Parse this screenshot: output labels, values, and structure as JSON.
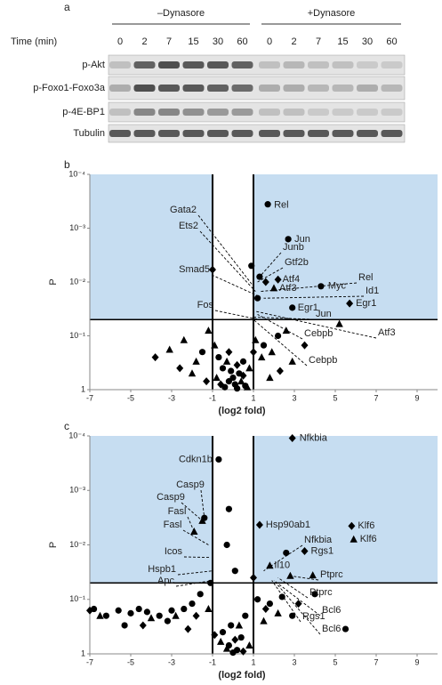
{
  "panel_a": {
    "label": "a",
    "groups": [
      "–Dynasore",
      "+Dynasore"
    ],
    "time_label": "Time (min)",
    "times": [
      [
        0,
        2,
        7,
        15,
        30,
        60
      ],
      [
        0,
        2,
        7,
        15,
        30,
        60
      ]
    ],
    "rows": [
      "p-Akt",
      "p-Foxo1-Foxo3a",
      "p-4E-BP1",
      "Tubulin"
    ]
  },
  "chart_data": [
    {
      "type": "scatter",
      "label": "b",
      "ylabel": "P",
      "xlabel": "(log2 fold)",
      "xlim": [
        -7,
        10
      ],
      "xticks": [
        -7,
        -5,
        -3,
        -1,
        1,
        3,
        5,
        7,
        9
      ],
      "ylim": [
        1,
        0.0001
      ],
      "yscale": "log",
      "yticks": [
        {
          "value": 0.0001,
          "label": "10⁻⁴"
        },
        {
          "value": 0.001,
          "label": "10⁻³"
        },
        {
          "value": 0.01,
          "label": "10⁻²"
        },
        {
          "value": 0.1,
          "label": "10⁻¹"
        },
        1
      ],
      "thresholds": {
        "x": [
          -1,
          1
        ],
        "y": 0.05
      },
      "shade_color": "#c6ddf1",
      "series": [
        {
          "marker": "circle",
          "color": "#000000",
          "x": [
            1.7,
            2.7,
            4.3,
            2.9,
            0.9,
            1.2,
            -0.5,
            -0.2,
            0.1,
            0.3,
            -0.4,
            0.0,
            0.5,
            -0.7,
            0.2,
            -0.1,
            0.6,
            1.5,
            -1.5,
            2.2,
            1.3
          ],
          "y": [
            0.00036,
            0.0016,
            0.012,
            0.03,
            0.005,
            0.02,
            0.4,
            0.7,
            0.8,
            0.5,
            0.9,
            0.6,
            0.3,
            0.25,
            0.95,
            0.45,
            0.85,
            0.15,
            0.2,
            0.1,
            0.008
          ]
        },
        {
          "marker": "triangle",
          "color": "#000000",
          "x": [
            5.2,
            -2.4,
            -1.8,
            -1.2,
            -0.8,
            0.8,
            1.1,
            1.9,
            2.6,
            -3.1,
            0.4,
            -0.3,
            1.4,
            -2.0,
            0.7,
            -0.9,
            2.9,
            1.8,
            2.0
          ],
          "y": [
            0.06,
            0.12,
            0.3,
            0.08,
            0.6,
            0.4,
            0.12,
            0.2,
            0.08,
            0.18,
            0.7,
            0.3,
            0.25,
            0.5,
            0.9,
            0.15,
            0.3,
            0.6,
            0.013
          ]
        },
        {
          "marker": "diamond",
          "color": "#000000",
          "x": [
            5.7,
            -1.0,
            1.6,
            -3.8,
            -2.6,
            -0.6,
            0.2,
            1.0,
            2.3,
            -1.3,
            3.5,
            0.5,
            -0.2,
            2.2
          ],
          "y": [
            0.025,
            0.0059,
            0.01,
            0.25,
            0.4,
            0.8,
            0.35,
            0.2,
            0.45,
            0.7,
            0.15,
            0.55,
            0.2,
            0.009
          ]
        }
      ],
      "annotations": [
        {
          "text": "Rel",
          "x": 1.7,
          "y": 0.00036
        },
        {
          "text": "Jun",
          "x": 2.7,
          "y": 0.0016
        },
        {
          "text": "Junb",
          "x": 1.3,
          "y": 0.008
        },
        {
          "text": "Gtf2b",
          "x": 1.2,
          "y": 0.01
        },
        {
          "text": "Atf4",
          "x": 2.2,
          "y": 0.009
        },
        {
          "text": "Atf3",
          "x": 2.0,
          "y": 0.013
        },
        {
          "text": "Rel",
          "x": 1.3,
          "y": 0.015
        },
        {
          "text": "Myc",
          "x": 4.3,
          "y": 0.012
        },
        {
          "text": "Id1",
          "x": 1.5,
          "y": 0.02
        },
        {
          "text": "Egr1",
          "x": 2.9,
          "y": 0.03
        },
        {
          "text": "Egr1",
          "x": 5.7,
          "y": 0.025
        },
        {
          "text": "Gata2",
          "x": 1.0,
          "y": 0.012
        },
        {
          "text": "Ets2",
          "x": 1.1,
          "y": 0.015
        },
        {
          "text": "Smad5",
          "x": 1.2,
          "y": 0.018
        },
        {
          "text": "Fos",
          "x": 1.3,
          "y": 0.05
        },
        {
          "text": "Jun",
          "x": 1.0,
          "y": 0.045
        },
        {
          "text": "Cebpb",
          "x": 1.2,
          "y": 0.04
        },
        {
          "text": "Atf3",
          "x": 1.1,
          "y": 0.035
        },
        {
          "text": "Cebpb",
          "x": 1.0,
          "y": 0.05
        }
      ]
    },
    {
      "type": "scatter",
      "label": "c",
      "ylabel": "P",
      "xlabel": "(log2 fold)",
      "xlim": [
        -7,
        10
      ],
      "xticks": [
        -7,
        -5,
        -3,
        -1,
        1,
        3,
        5,
        7,
        9
      ],
      "ylim": [
        1,
        0.0001
      ],
      "yscale": "log",
      "yticks": [
        {
          "value": 0.0001,
          "label": "10⁻⁴"
        },
        {
          "value": 0.001,
          "label": "10⁻³"
        },
        {
          "value": 0.01,
          "label": "10⁻²"
        },
        {
          "value": 0.1,
          "label": "10⁻¹"
        },
        1
      ],
      "thresholds": {
        "x": [
          -1,
          1
        ],
        "y": 0.05
      },
      "shade_color": "#c6ddf1",
      "series": [
        {
          "marker": "circle",
          "color": "#000000",
          "x": [
            -0.7,
            -1.4,
            -0.2,
            -0.3,
            0.1,
            2.6,
            -6.8,
            -6.2,
            -5.6,
            -5.0,
            -4.6,
            -4.2,
            -3.6,
            -3.0,
            -2.4,
            -2.0,
            -1.6,
            -5.3,
            -3.2,
            -0.5,
            -0.2,
            0.2,
            0.4,
            -0.1,
            0.6,
            1.2,
            1.8,
            2.4,
            5.5,
            4.0,
            2.9,
            -1.1,
            0.0
          ],
          "y": [
            0.00027,
            0.0032,
            0.0022,
            0.01,
            0.03,
            0.014,
            0.15,
            0.2,
            0.16,
            0.18,
            0.15,
            0.17,
            0.2,
            0.16,
            0.15,
            0.12,
            0.08,
            0.3,
            0.25,
            0.4,
            0.7,
            0.85,
            0.5,
            0.3,
            0.2,
            0.1,
            0.12,
            0.09,
            0.35,
            0.08,
            0.2,
            0.05,
            0.95
          ]
        },
        {
          "marker": "triangle",
          "color": "#000000",
          "x": [
            -1.5,
            -1.9,
            5.9,
            1.8,
            2.8,
            3.9,
            -6.5,
            -4.0,
            -2.8,
            -1.2,
            -0.6,
            0.3,
            0.8,
            1.5,
            2.2,
            -0.3
          ],
          "y": [
            0.0036,
            0.0057,
            0.0079,
            0.024,
            0.037,
            0.036,
            0.2,
            0.22,
            0.2,
            0.15,
            0.6,
            0.3,
            0.7,
            0.25,
            0.18,
            0.8
          ]
        },
        {
          "marker": "diamond",
          "color": "#000000",
          "x": [
            2.9,
            1.3,
            5.8,
            3.5,
            1.0,
            -7,
            -4.4,
            -2.2,
            -0.9,
            0.5,
            1.6,
            3.2,
            -1.8,
            0.1
          ],
          "y": [
            0.00011,
            0.0043,
            0.0045,
            0.013,
            0.04,
            0.16,
            0.3,
            0.35,
            0.45,
            0.9,
            0.15,
            0.12,
            0.2,
            0.55
          ]
        }
      ],
      "annotations": [
        {
          "text": "Nfkbia",
          "x": 2.9,
          "y": 0.00011
        },
        {
          "text": "Cdkn1b",
          "x": -0.7,
          "y": 0.00027
        },
        {
          "text": "Casp9",
          "x": -1.4,
          "y": 0.0032
        },
        {
          "text": "Casp9",
          "x": -1.5,
          "y": 0.0036
        },
        {
          "text": "Fasl",
          "x": -1.9,
          "y": 0.0057
        },
        {
          "text": "Fasl",
          "x": -1.2,
          "y": 0.01
        },
        {
          "text": "Icos",
          "x": -1.1,
          "y": 0.017
        },
        {
          "text": "Hspb1",
          "x": -1.0,
          "y": 0.03
        },
        {
          "text": "Apc",
          "x": -1.0,
          "y": 0.045
        },
        {
          "text": "Hsp90ab1",
          "x": 1.3,
          "y": 0.0043
        },
        {
          "text": "Klf6",
          "x": 5.8,
          "y": 0.0045
        },
        {
          "text": "Klf6",
          "x": 5.9,
          "y": 0.0079
        },
        {
          "text": "Nfkbia",
          "x": 1.5,
          "y": 0.03
        },
        {
          "text": "Rgs1",
          "x": 3.5,
          "y": 0.013
        },
        {
          "text": "Il10",
          "x": 1.8,
          "y": 0.024
        },
        {
          "text": "Ptprc",
          "x": 2.8,
          "y": 0.037
        },
        {
          "text": "Ptprc",
          "x": 2.2,
          "y": 0.04
        },
        {
          "text": "Bcl6",
          "x": 2.0,
          "y": 0.045
        },
        {
          "text": "Rgs1",
          "x": 1.9,
          "y": 0.045
        },
        {
          "text": "Bcl6",
          "x": 2.1,
          "y": 0.05
        }
      ]
    }
  ]
}
